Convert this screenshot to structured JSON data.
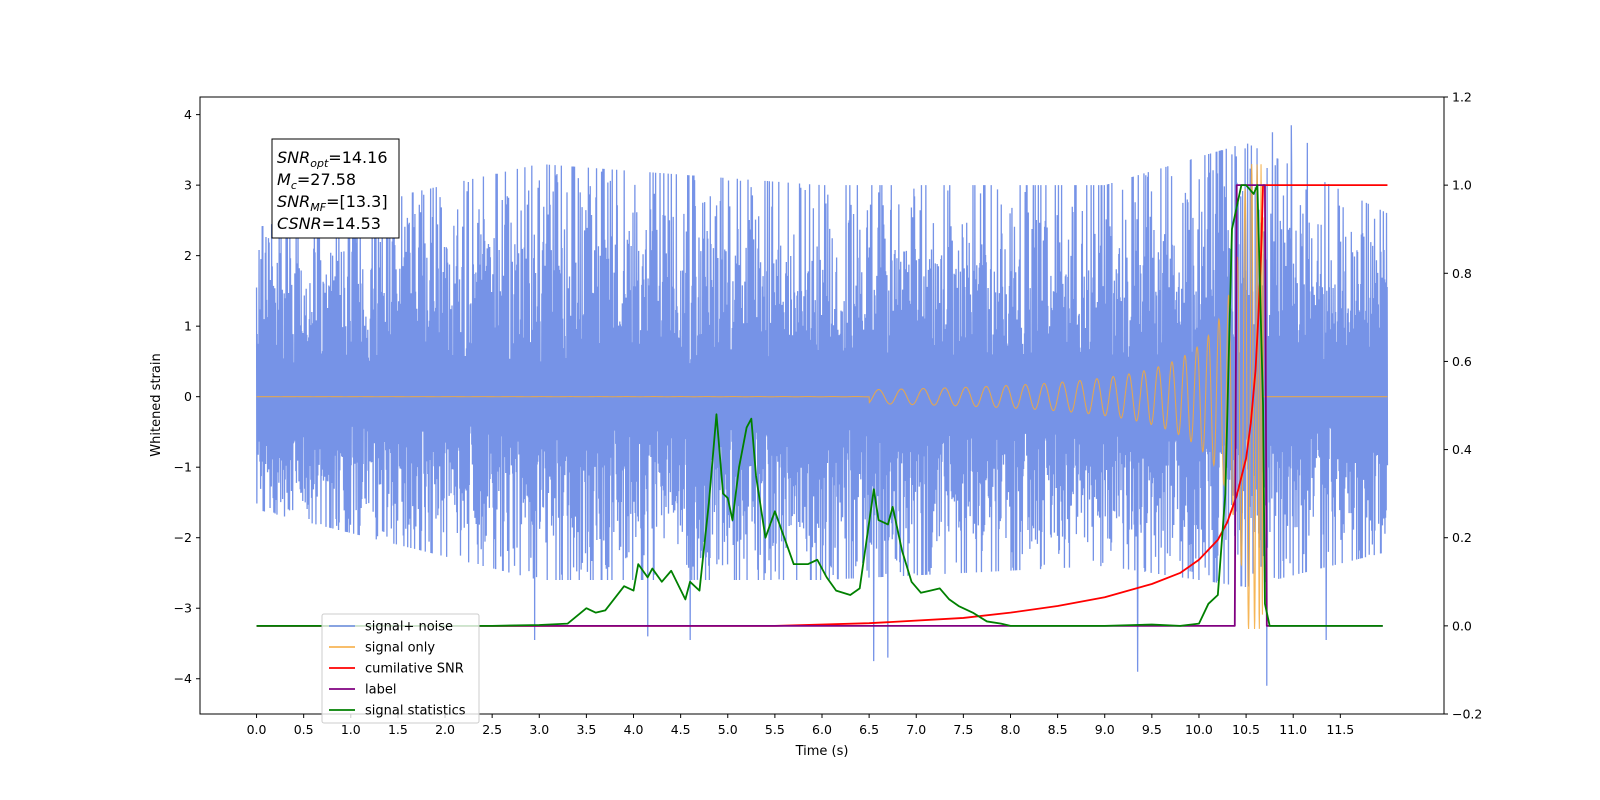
{
  "chart_data": {
    "type": "line",
    "xlabel": "Time (s)",
    "ylabel": "Whitened strain",
    "xlim": [
      -0.6,
      12.6
    ],
    "ylim": [
      -4.5,
      4.25
    ],
    "y2lim": [
      -0.2,
      1.2
    ],
    "x_ticks": [
      0.0,
      0.5,
      1.0,
      1.5,
      2.0,
      2.5,
      3.0,
      3.5,
      4.0,
      4.5,
      5.0,
      5.5,
      6.0,
      6.5,
      7.0,
      7.5,
      8.0,
      8.5,
      9.0,
      9.5,
      10.0,
      10.5,
      11.0,
      11.5
    ],
    "x_tick_labels": [
      "0.0",
      "0.5",
      "1.0",
      "1.5",
      "2.0",
      "2.5",
      "3.0",
      "3.5",
      "4.0",
      "4.5",
      "5.0",
      "5.5",
      "6.0",
      "6.5",
      "7.0",
      "7.5",
      "8.0",
      "8.5",
      "9.0",
      "9.5",
      "10.0",
      "10.5",
      "11.0",
      "11.5"
    ],
    "y_ticks": [
      -4,
      -3,
      -2,
      -1,
      0,
      1,
      2,
      3,
      4
    ],
    "y_tick_labels": [
      "−4",
      "−3",
      "−2",
      "−1",
      "0",
      "1",
      "2",
      "3",
      "4"
    ],
    "y2_ticks": [
      -0.2,
      0.0,
      0.2,
      0.4,
      0.6,
      0.8,
      1.0,
      1.2
    ],
    "y2_tick_labels": [
      "−0.2",
      "0.0",
      "0.2",
      "0.4",
      "0.6",
      "0.8",
      "1.0",
      "1.2"
    ],
    "annotation": {
      "lines": [
        {
          "base": "SNR",
          "sub": "opt",
          "value": "=14.16"
        },
        {
          "base": "M",
          "sub": "c",
          "value": "=27.58"
        },
        {
          "base": "SNR",
          "sub": "MF",
          "value": "=[13.3]"
        },
        {
          "base": "CSNR",
          "sub": "",
          "value": "=14.53"
        }
      ]
    },
    "legend": {
      "placement": "lower-left",
      "entries": [
        "signal+ noise",
        "signal only",
        "cumilative SNR",
        "label",
        "signal statistics"
      ]
    },
    "series": [
      {
        "name": "signal+ noise",
        "axis": "left",
        "color": "#6f8de6",
        "kind": "noise",
        "x_range": [
          0.0,
          12.0
        ],
        "amplitude_envelope": [
          [
            0.0,
            -1.6,
            2.4
          ],
          [
            3.0,
            -2.6,
            3.3
          ],
          [
            6.0,
            -2.6,
            3.0
          ],
          [
            9.0,
            -2.4,
            3.0
          ],
          [
            10.5,
            -2.7,
            3.6
          ],
          [
            12.0,
            -2.2,
            2.6
          ]
        ],
        "spikes": [
          [
            1.05,
            3.4
          ],
          [
            2.95,
            -3.45
          ],
          [
            4.15,
            -3.4
          ],
          [
            4.6,
            -3.45
          ],
          [
            6.55,
            -3.75
          ],
          [
            6.7,
            -3.7
          ],
          [
            9.35,
            -3.9
          ],
          [
            10.72,
            -4.1
          ],
          [
            10.78,
            3.75
          ],
          [
            10.98,
            3.85
          ],
          [
            11.15,
            3.6
          ],
          [
            11.35,
            -3.45
          ]
        ]
      },
      {
        "name": "signal only",
        "axis": "left",
        "color": "#f5a93a",
        "kind": "chirp",
        "x_range": [
          0.0,
          12.0
        ],
        "merger_time": 10.68,
        "peak_amplitude": 3.3
      },
      {
        "name": "cumilative SNR",
        "axis": "right",
        "color": "#ff0000",
        "points": [
          [
            0.0,
            0.0
          ],
          [
            5.5,
            0.0
          ],
          [
            6.5,
            0.006
          ],
          [
            7.5,
            0.018
          ],
          [
            8.0,
            0.03
          ],
          [
            8.5,
            0.045
          ],
          [
            9.0,
            0.065
          ],
          [
            9.5,
            0.095
          ],
          [
            9.8,
            0.12
          ],
          [
            10.0,
            0.15
          ],
          [
            10.2,
            0.195
          ],
          [
            10.3,
            0.235
          ],
          [
            10.4,
            0.295
          ],
          [
            10.5,
            0.38
          ],
          [
            10.55,
            0.46
          ],
          [
            10.6,
            0.58
          ],
          [
            10.63,
            0.7
          ],
          [
            10.66,
            0.85
          ],
          [
            10.68,
            1.0
          ],
          [
            12.0,
            1.0
          ]
        ]
      },
      {
        "name": "label",
        "axis": "right",
        "color": "#800080",
        "points": [
          [
            0.0,
            0.0
          ],
          [
            10.38,
            0.0
          ],
          [
            10.4,
            1.0
          ],
          [
            10.7,
            1.0
          ],
          [
            10.72,
            0.0
          ],
          [
            11.95,
            0.0
          ]
        ]
      },
      {
        "name": "signal statistics",
        "axis": "right",
        "color": "#008000",
        "points": [
          [
            0.0,
            0.0
          ],
          [
            2.5,
            0.0
          ],
          [
            3.0,
            0.002
          ],
          [
            3.3,
            0.005
          ],
          [
            3.5,
            0.04
          ],
          [
            3.6,
            0.03
          ],
          [
            3.7,
            0.035
          ],
          [
            3.9,
            0.09
          ],
          [
            4.0,
            0.08
          ],
          [
            4.05,
            0.14
          ],
          [
            4.15,
            0.11
          ],
          [
            4.2,
            0.13
          ],
          [
            4.3,
            0.1
          ],
          [
            4.4,
            0.125
          ],
          [
            4.55,
            0.06
          ],
          [
            4.6,
            0.1
          ],
          [
            4.7,
            0.08
          ],
          [
            4.8,
            0.28
          ],
          [
            4.88,
            0.48
          ],
          [
            4.95,
            0.3
          ],
          [
            5.0,
            0.29
          ],
          [
            5.05,
            0.24
          ],
          [
            5.12,
            0.36
          ],
          [
            5.2,
            0.45
          ],
          [
            5.25,
            0.47
          ],
          [
            5.3,
            0.34
          ],
          [
            5.4,
            0.2
          ],
          [
            5.5,
            0.26
          ],
          [
            5.6,
            0.2
          ],
          [
            5.7,
            0.14
          ],
          [
            5.85,
            0.14
          ],
          [
            5.95,
            0.15
          ],
          [
            6.05,
            0.11
          ],
          [
            6.15,
            0.08
          ],
          [
            6.3,
            0.07
          ],
          [
            6.4,
            0.085
          ],
          [
            6.55,
            0.31
          ],
          [
            6.6,
            0.24
          ],
          [
            6.7,
            0.23
          ],
          [
            6.75,
            0.27
          ],
          [
            6.85,
            0.17
          ],
          [
            6.95,
            0.1
          ],
          [
            7.05,
            0.075
          ],
          [
            7.15,
            0.08
          ],
          [
            7.25,
            0.085
          ],
          [
            7.35,
            0.06
          ],
          [
            7.45,
            0.045
          ],
          [
            7.6,
            0.03
          ],
          [
            7.75,
            0.01
          ],
          [
            7.9,
            0.005
          ],
          [
            8.0,
            0.0
          ],
          [
            8.5,
            0.0
          ],
          [
            9.0,
            0.0
          ],
          [
            9.5,
            0.003
          ],
          [
            9.8,
            0.0
          ],
          [
            10.0,
            0.005
          ],
          [
            10.1,
            0.05
          ],
          [
            10.2,
            0.07
          ],
          [
            10.28,
            0.3
          ],
          [
            10.35,
            0.9
          ],
          [
            10.45,
            1.0
          ],
          [
            10.5,
            1.0
          ],
          [
            10.58,
            0.98
          ],
          [
            10.62,
            1.0
          ],
          [
            10.68,
            0.5
          ],
          [
            10.7,
            0.05
          ],
          [
            10.75,
            0.0
          ],
          [
            11.95,
            0.0
          ]
        ]
      }
    ]
  }
}
